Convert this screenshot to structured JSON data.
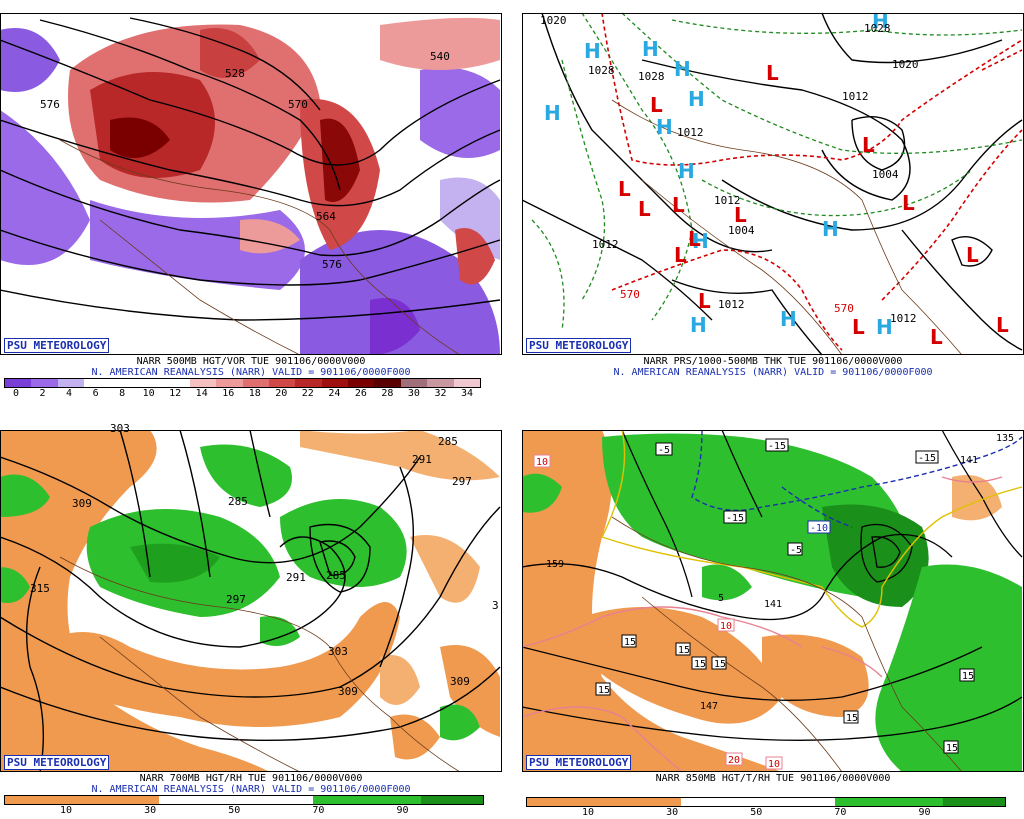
{
  "panels": [
    {
      "id": "tl",
      "badge": "PSU METEOROLOGY",
      "line1": "NARR 500MB HGT/VOR TUE 901106/0000V000",
      "line2": "N. AMERICAN REANALYSIS (NARR) VALID = 901106/0000F000",
      "ticks": [
        "0",
        "2",
        "4",
        "6",
        "8",
        "10",
        "12",
        "14",
        "16",
        "18",
        "20",
        "22",
        "24",
        "26",
        "28",
        "30",
        "32",
        "34"
      ],
      "map_labels": [
        "576",
        "528",
        "570",
        "564",
        "576",
        "540"
      ],
      "colors": [
        "#7a3fd6",
        "#9a6ae8",
        "#c4b2f0",
        "#ffffff",
        "#ffffff",
        "#ffffff",
        "#ffffff",
        "#f4c0c0",
        "#ec9a9a",
        "#e07070",
        "#d04848",
        "#b82828",
        "#a01010",
        "#7a0000",
        "#5a0000",
        "#a0707a",
        "#c898a0",
        "#f0c8d0"
      ]
    },
    {
      "id": "tr",
      "badge": "PSU METEOROLOGY",
      "line1": "NARR PRS/1000-500MB THK TUE 901106/0000V000",
      "line2": "N. AMERICAN REANALYSIS (NARR) VALID = 901106/0000F000",
      "map_labels": [
        "1020",
        "1028",
        "1028",
        "1012",
        "1004",
        "1012",
        "1012",
        "1004",
        "1012",
        "570",
        "570",
        "1012",
        "1028",
        "1020",
        "1012"
      ]
    },
    {
      "id": "bl",
      "badge": "PSU METEOROLOGY",
      "line1": "NARR 700MB HGT/RH TUE 901106/0000V000",
      "line2": "N. AMERICAN REANALYSIS (NARR) VALID = 901106/0000F000",
      "ticks": [
        "10",
        "30",
        "50",
        "70",
        "90"
      ],
      "map_labels": [
        "303",
        "309",
        "315",
        "285",
        "291",
        "297",
        "285",
        "303",
        "309",
        "309",
        "291",
        "297",
        "285",
        "3"
      ]
    },
    {
      "id": "br",
      "badge": "PSU METEOROLOGY",
      "line1": "NARR 850MB HGT/T/RH TUE 901106/0000V000",
      "line2": "",
      "ticks": [
        "10",
        "30",
        "50",
        "70",
        "90"
      ],
      "map_labels": [
        "10",
        "159",
        "147",
        "141",
        "135",
        "15",
        "15",
        "15",
        "15",
        "15",
        "15",
        "15",
        "15",
        "-5",
        "-15",
        "-15",
        "-10",
        "-5",
        "-15",
        "5",
        "10",
        "20",
        "10",
        "141"
      ]
    }
  ]
}
